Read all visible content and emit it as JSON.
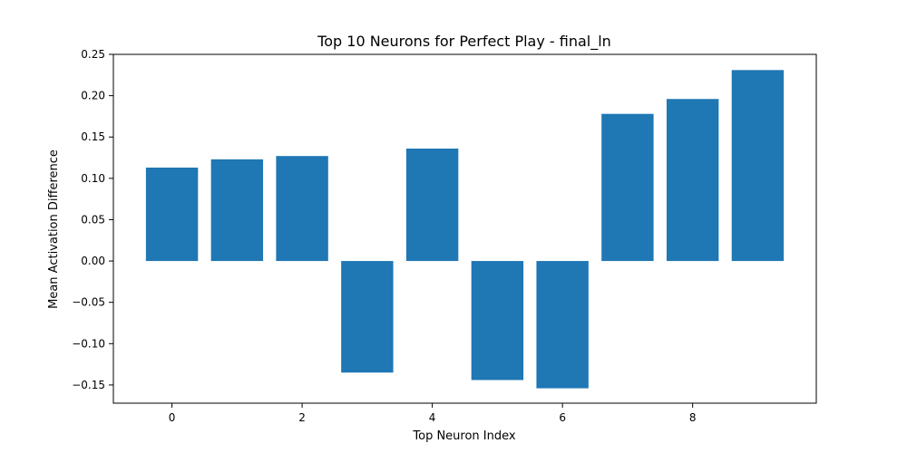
{
  "chart_data": {
    "type": "bar",
    "title": "Top 10 Neurons for Perfect Play - final_ln",
    "xlabel": "Top Neuron Index",
    "ylabel": "Mean Activation Difference",
    "categories": [
      0,
      1,
      2,
      3,
      4,
      5,
      6,
      7,
      8,
      9
    ],
    "values": [
      0.113,
      0.123,
      0.127,
      -0.135,
      0.136,
      -0.144,
      -0.154,
      0.178,
      0.196,
      0.231
    ],
    "xlim": [
      -0.9,
      9.9
    ],
    "ylim": [
      -0.172,
      0.25
    ],
    "xticks": [
      0,
      2,
      4,
      6,
      8
    ],
    "xtick_labels": [
      "0",
      "2",
      "4",
      "6",
      "8"
    ],
    "yticks": [
      -0.15,
      -0.1,
      -0.05,
      0.0,
      0.05,
      0.1,
      0.15,
      0.2,
      0.25
    ],
    "ytick_labels": [
      "−0.15",
      "−0.10",
      "−0.05",
      "0.00",
      "0.05",
      "0.10",
      "0.15",
      "0.20",
      "0.25"
    ],
    "bar_color": "#1f77b4",
    "grid": false,
    "legend": "none"
  }
}
